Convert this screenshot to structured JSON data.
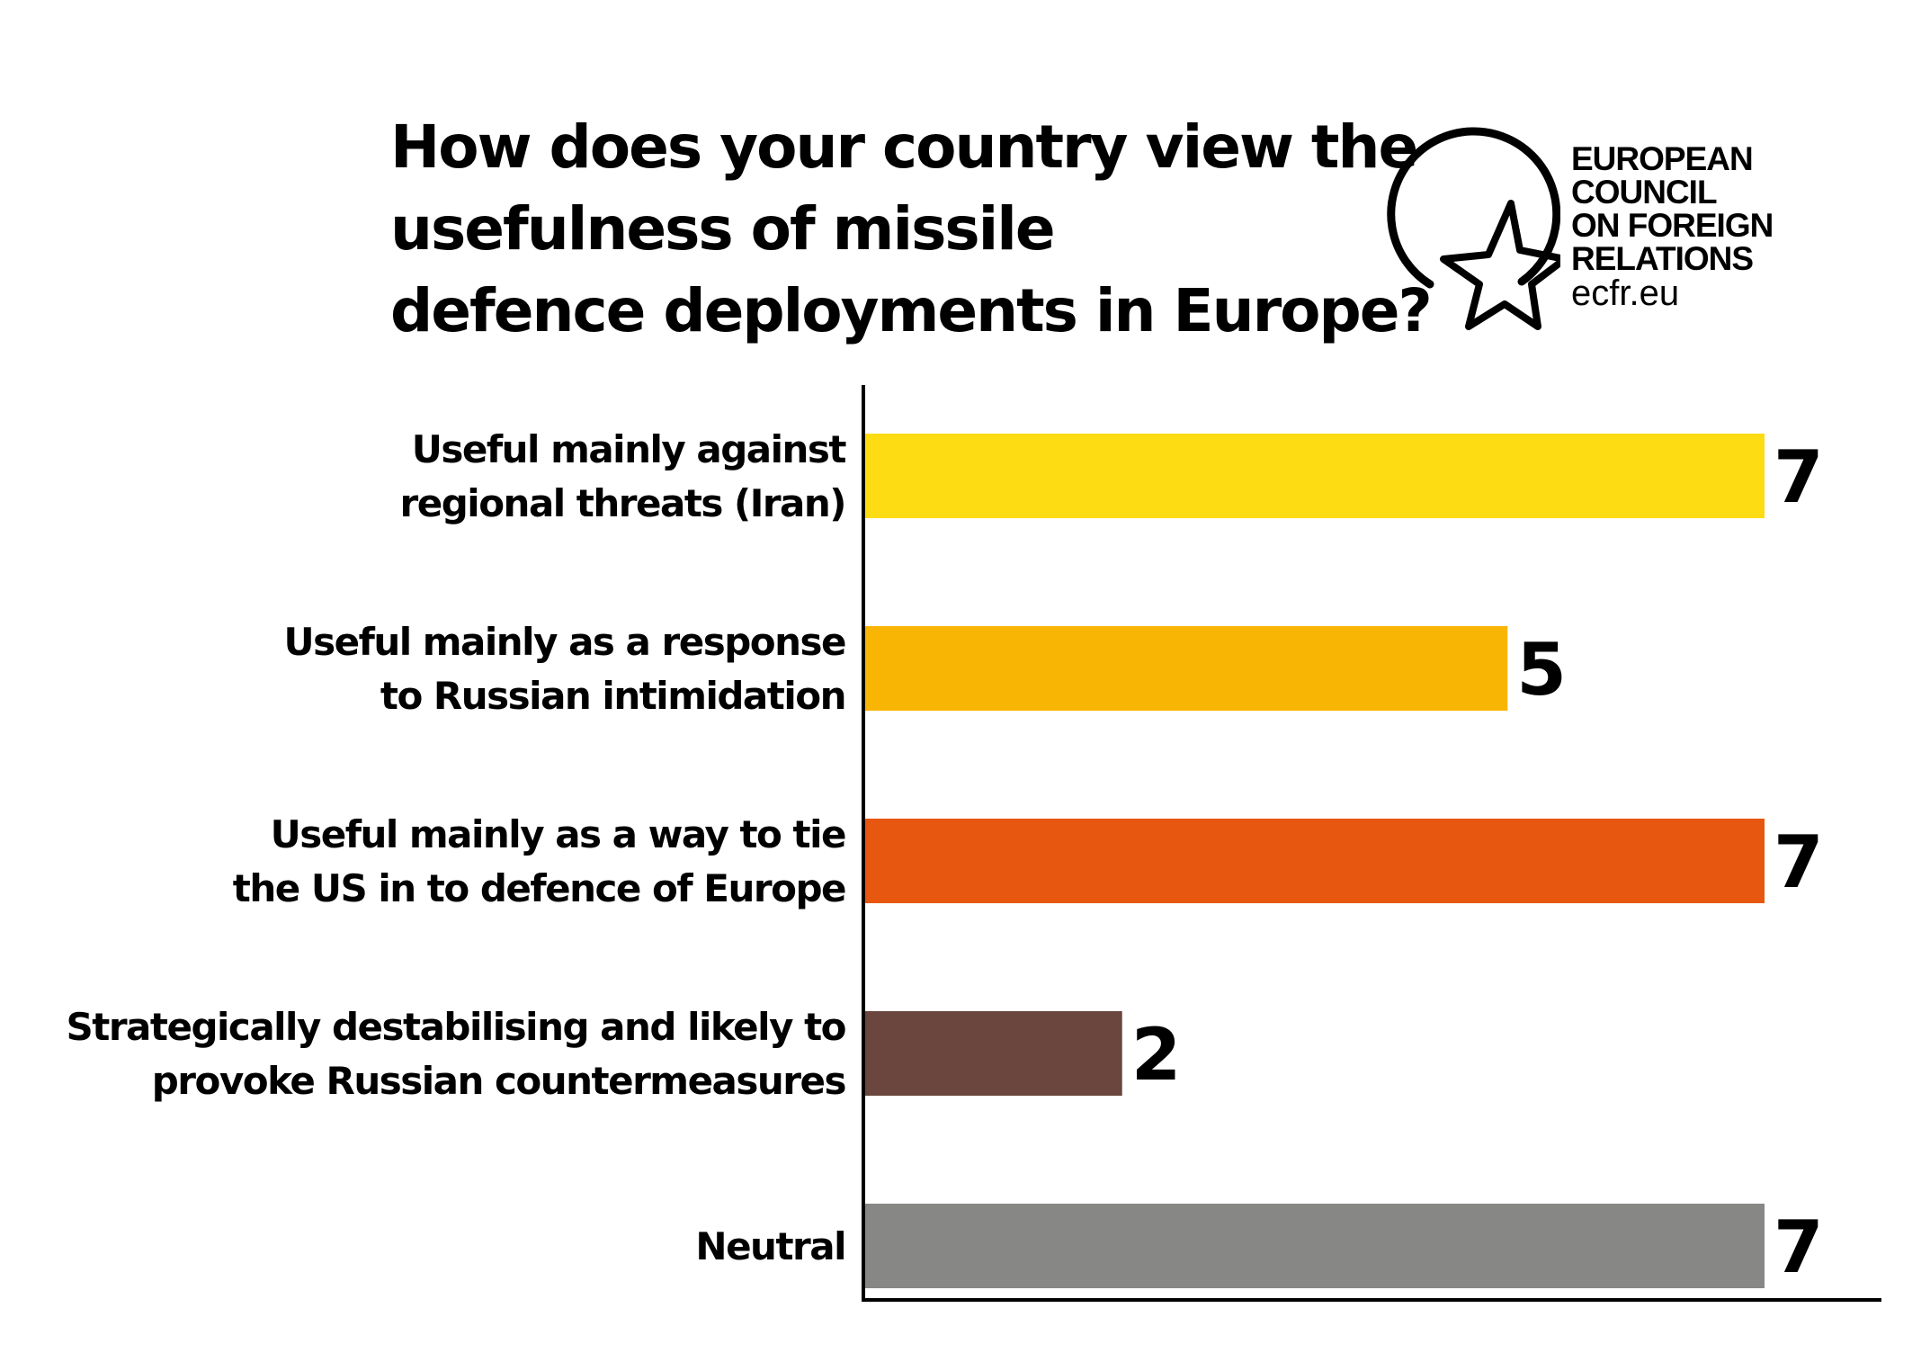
{
  "title_lines": [
    "How does your country view the",
    "usefulness of missile",
    "defence deployments in Europe?"
  ],
  "logo": {
    "lines": [
      "EUROPEAN",
      "COUNCIL",
      "ON FOREIGN",
      "RELATIONS"
    ],
    "url": "ecfr.eu",
    "icon": "circle-star-icon"
  },
  "chart_data": {
    "type": "bar",
    "orientation": "horizontal",
    "categories": [
      [
        "Useful mainly against",
        "regional threats (Iran)"
      ],
      [
        "Useful mainly as a response",
        "to Russian intimidation"
      ],
      [
        "Useful mainly as a way to tie",
        "the US in to defence of Europe"
      ],
      [
        "Strategically destabilising and likely to",
        "provoke Russian countermeasures"
      ],
      [
        "Neutral"
      ]
    ],
    "values": [
      7,
      5,
      7,
      2,
      7
    ],
    "colors": [
      "#FDDC14",
      "#F9B504",
      "#E8570F",
      "#6A463F",
      "#878786"
    ],
    "xlim": [
      0,
      7
    ],
    "grid": false,
    "legend": "none",
    "data_labels": true
  }
}
